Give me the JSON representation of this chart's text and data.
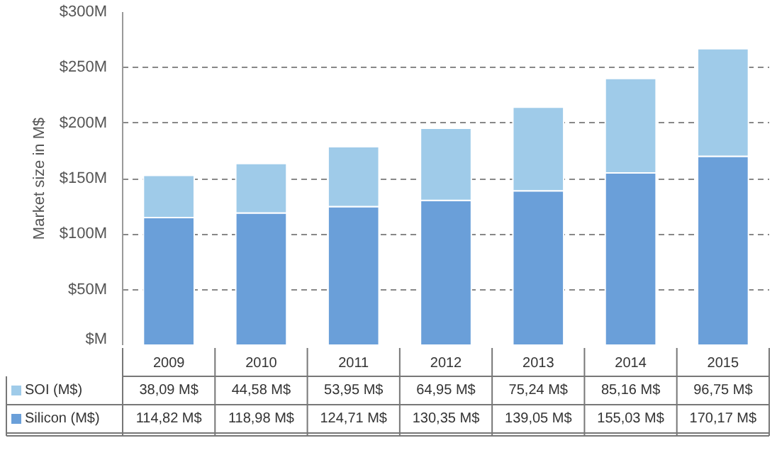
{
  "chart_data": {
    "type": "bar",
    "stacked": true,
    "ylabel": "Market size in M$",
    "categories": [
      "2009",
      "2010",
      "2011",
      "2012",
      "2013",
      "2014",
      "2015"
    ],
    "series": [
      {
        "name": "Silicon (M$)",
        "color": "#6a9fd9",
        "values": [
          114.82,
          118.98,
          124.71,
          130.35,
          139.05,
          155.03,
          170.17
        ],
        "value_labels": [
          "114,82 M$",
          "118,98 M$",
          "124,71 M$",
          "130,35 M$",
          "139,05 M$",
          "155,03 M$",
          "170,17 M$"
        ]
      },
      {
        "name": "SOI (M$)",
        "color": "#9fcbe9",
        "values": [
          38.09,
          44.58,
          53.95,
          64.95,
          75.24,
          85.16,
          96.75
        ],
        "value_labels": [
          "38,09 M$",
          "44,58 M$",
          "53,95 M$",
          "64,95 M$",
          "75,24 M$",
          "85,16 M$",
          "96,75 M$"
        ]
      }
    ],
    "ylim": [
      0,
      300
    ],
    "yticks": [
      {
        "value": 0,
        "label": "$M"
      },
      {
        "value": 50,
        "label": "$50M"
      },
      {
        "value": 100,
        "label": "$100M"
      },
      {
        "value": 150,
        "label": "$150M"
      },
      {
        "value": 200,
        "label": "$200M"
      },
      {
        "value": 250,
        "label": "$250M"
      },
      {
        "value": 300,
        "label": "$300M"
      }
    ],
    "grid": "y",
    "legend": "bottom"
  }
}
